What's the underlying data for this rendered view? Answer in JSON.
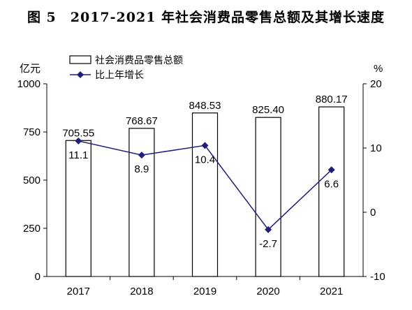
{
  "chart_data": {
    "type": "bar+line",
    "title": "图 5　2017-2021 年社会消费品零售总额及其增长速度",
    "categories": [
      "2017",
      "2018",
      "2019",
      "2020",
      "2021"
    ],
    "left_axis": {
      "unit": "亿元",
      "range": [
        0,
        1000
      ],
      "ticks": [
        "0",
        "250",
        "500",
        "750",
        "1000"
      ]
    },
    "right_axis": {
      "unit": "%",
      "range": [
        -10,
        20
      ],
      "ticks": [
        "-10",
        "0",
        "10",
        "20"
      ]
    },
    "series": [
      {
        "name": "社会消费品零售总额",
        "type": "bar",
        "axis": "left",
        "values": [
          705.55,
          768.67,
          848.53,
          825.4,
          880.17
        ],
        "labels": [
          "705.55",
          "768.67",
          "848.53",
          "825.40",
          "880.17"
        ]
      },
      {
        "name": "比上年增长",
        "type": "line",
        "axis": "right",
        "values": [
          11.1,
          8.9,
          10.4,
          -2.7,
          6.6
        ],
        "labels": [
          "11.1",
          "8.9",
          "10.4",
          "-2.7",
          "6.6"
        ]
      }
    ],
    "legend": "top-left",
    "grid": false,
    "colors": {
      "bar_fill": "#ffffff",
      "bar_stroke": "#000000",
      "line": "#1f1f7a"
    }
  }
}
